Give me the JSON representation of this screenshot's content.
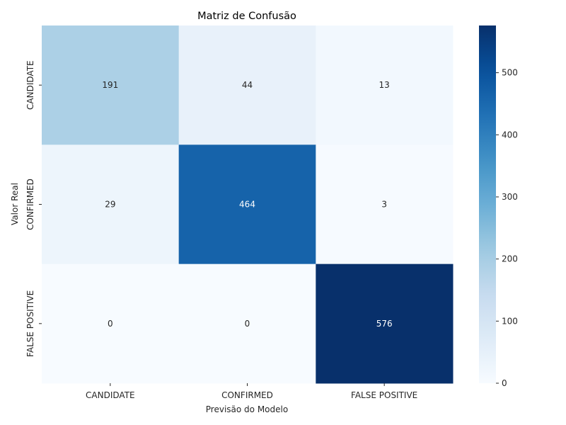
{
  "chart_data": {
    "type": "heatmap",
    "title": "Matriz de Confusão",
    "xlabel": "Previsão do Modelo",
    "ylabel": "Valor Real",
    "x_categories": [
      "CANDIDATE",
      "CONFIRMED",
      "FALSE POSITIVE"
    ],
    "y_categories": [
      "CANDIDATE",
      "CONFIRMED",
      "FALSE POSITIVE"
    ],
    "values": [
      [
        191,
        44,
        13
      ],
      [
        29,
        464,
        3
      ],
      [
        0,
        0,
        576
      ]
    ],
    "colorbar": {
      "range": [
        0,
        576
      ],
      "ticks": [
        0,
        100,
        200,
        300,
        400,
        500
      ],
      "colormap": "Blues"
    },
    "grid": false,
    "legend": "none"
  }
}
